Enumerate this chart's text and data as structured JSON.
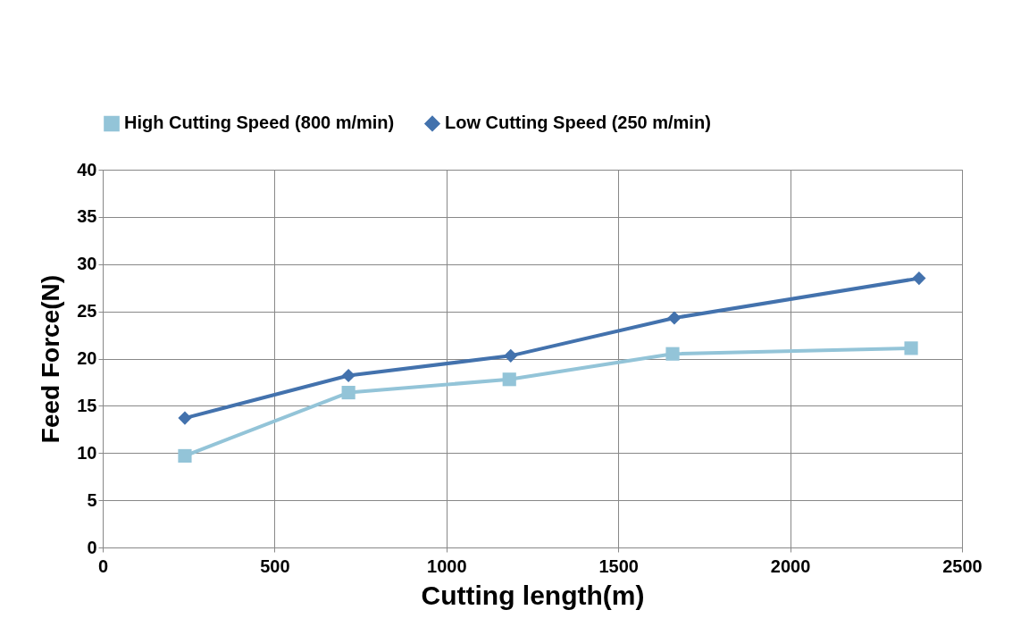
{
  "chart_data": {
    "type": "line",
    "xlabel": "Cutting length(m)",
    "ylabel": "Feed Force(N)",
    "xlim": [
      0,
      2500
    ],
    "xticks": [
      0,
      500,
      1000,
      1500,
      2000,
      2500
    ],
    "ylim": [
      0,
      40
    ],
    "yticks": [
      0,
      5,
      10,
      15,
      20,
      25,
      30,
      35,
      40
    ],
    "grid": true,
    "legend": "top",
    "line_style": "solid",
    "series": [
      {
        "name": "High Cutting Speed (800 m/min)",
        "color": "#93c4d8",
        "marker": "square",
        "x": [
          239,
          715,
          1183,
          1658,
          2352
        ],
        "values": [
          9.7,
          16.4,
          17.8,
          20.5,
          21.1
        ]
      },
      {
        "name": "Low Cutting Speed (250 m/min)",
        "color": "#4372ad",
        "marker": "diamond",
        "x": [
          239,
          715,
          1187,
          1663,
          2375
        ],
        "values": [
          13.7,
          18.2,
          20.3,
          24.3,
          28.5
        ]
      }
    ]
  }
}
